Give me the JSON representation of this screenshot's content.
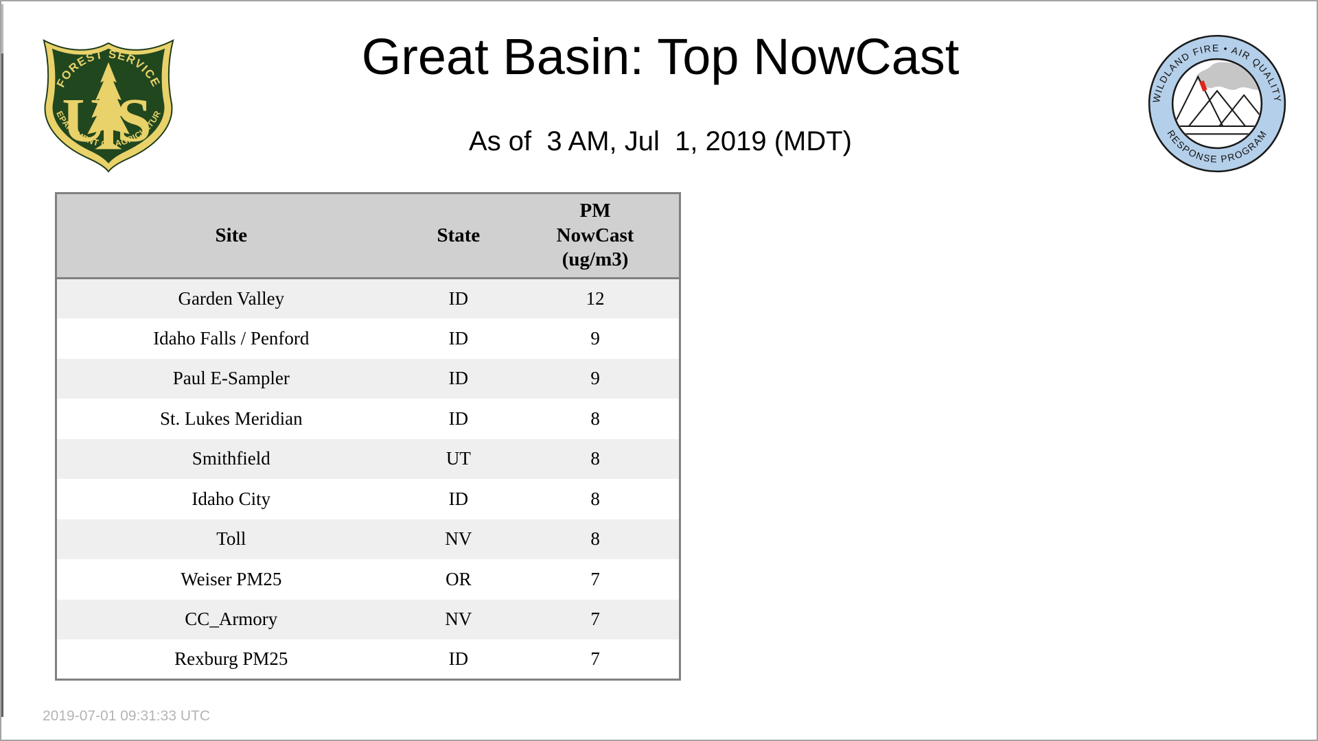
{
  "page": {
    "title": "Great Basin: Top NowCast",
    "subtitle": "As of  3 AM, Jul  1, 2019 (MDT)",
    "footer_timestamp": "2019-07-01 09:31:33 UTC"
  },
  "colors": {
    "page-border": "#a3a3a3",
    "table-border": "#808080",
    "header-bg": "#d0d0d0",
    "stripe-bg": "#efefef",
    "footer-gray": "#b4b4b4",
    "fs-green": "#21471f",
    "fs-gold": "#e9d26a",
    "ring-blue": "#b4cfe9",
    "smoke-gray": "#c6c6c6",
    "fire-red": "#e0251b"
  },
  "logos": {
    "forest_service": {
      "arc_top": "FOREST SERVICE",
      "arc_bottom": "DEPARTMENT OF AGRICULTURE",
      "monogram_left": "U",
      "monogram_right": "S"
    },
    "wfaqrp": {
      "arc_top": "WILDLAND FIRE • AIR QUALITY",
      "arc_bottom": "RESPONSE PROGRAM"
    }
  },
  "table": {
    "columns": [
      "Site",
      "State",
      "PM\nNowCast\n(ug/m3)"
    ],
    "rows": [
      {
        "site": "Garden Valley",
        "state": "ID",
        "value": "12"
      },
      {
        "site": "Idaho Falls / Penford",
        "state": "ID",
        "value": "9"
      },
      {
        "site": "Paul E-Sampler",
        "state": "ID",
        "value": "9"
      },
      {
        "site": "St. Lukes Meridian",
        "state": "ID",
        "value": "8"
      },
      {
        "site": "Smithfield",
        "state": "UT",
        "value": "8"
      },
      {
        "site": "Idaho City",
        "state": "ID",
        "value": "8"
      },
      {
        "site": "Toll",
        "state": "NV",
        "value": "8"
      },
      {
        "site": "Weiser PM25",
        "state": "OR",
        "value": "7"
      },
      {
        "site": "CC_Armory",
        "state": "NV",
        "value": "7"
      },
      {
        "site": "Rexburg PM25",
        "state": "ID",
        "value": "7"
      }
    ]
  },
  "chart_data": {
    "type": "table",
    "title": "Great Basin: Top NowCast",
    "subtitle": "As of 3 AM, Jul 1, 2019 (MDT)",
    "columns": [
      "Site",
      "State",
      "PM NowCast (ug/m3)"
    ],
    "categories": [
      "Garden Valley",
      "Idaho Falls / Penford",
      "Paul E-Sampler",
      "St. Lukes Meridian",
      "Smithfield",
      "Idaho City",
      "Toll",
      "Weiser PM25",
      "CC_Armory",
      "Rexburg PM25"
    ],
    "states": [
      "ID",
      "ID",
      "ID",
      "ID",
      "UT",
      "ID",
      "NV",
      "OR",
      "NV",
      "ID"
    ],
    "values": [
      12,
      9,
      9,
      8,
      8,
      8,
      8,
      7,
      7,
      7
    ]
  }
}
